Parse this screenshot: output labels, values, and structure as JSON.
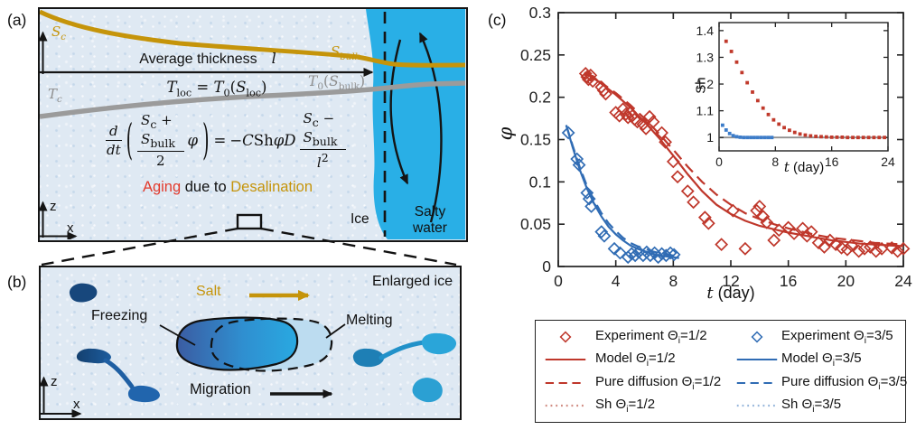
{
  "colors": {
    "red": "#bf372b",
    "blue": "#306cb4",
    "sh_red": "#c0392b",
    "sh_blue": "#3c7cc9",
    "legend_sh_red": "#d08b81",
    "legend_sh_blue": "#96b6db",
    "gold": "#c5940a",
    "gray_curve": "#9b9b9b",
    "water": "#29afe6",
    "aging_red": "#e23a2c",
    "ice_bg": "#dfe9f3",
    "axis": "#222222"
  },
  "panel_a": {
    "label": "(a)",
    "sc": {
      "b": "S",
      "s": "c"
    },
    "sbulk": {
      "b": "S",
      "s": "bulk"
    },
    "tc": {
      "b": "T",
      "s": "c"
    },
    "t0sbulk": {
      "t": "T",
      "ts": "0",
      "o": "(",
      "s": "S",
      "ss": "bulk",
      "c": ")"
    },
    "avg_text": "Average thickness",
    "avg_var": "l",
    "tloc": {
      "t": "T",
      "ts": "loc",
      "eq": "=",
      "t0": "T",
      "t0s": "0",
      "o": "(",
      "s": "S",
      "ss": "loc",
      "c": ")"
    },
    "ode": {
      "d": "d",
      "dt": "dt",
      "o": "(",
      "s1": "S",
      "s1s": "c",
      "plus": "+",
      "s2": "S",
      "s2s": "bulk",
      "den": "2",
      "phi": "φ",
      "c": ")",
      "eq": "=",
      "minus": "−",
      "cc": "C",
      "sh": "Sh",
      "phi2": "φ",
      "dd": "D",
      "n1": "S",
      "n1s": "c",
      "m2": "−",
      "n2": "S",
      "n2s": "bulk",
      "l": "l",
      "lsup": "2"
    },
    "aging": {
      "a": "Aging",
      "b": "due to",
      "c": "Desalination"
    },
    "ice": "Ice",
    "water1": "Salty",
    "water2": "water",
    "z": "z",
    "x": "x"
  },
  "panel_b": {
    "label": "(b)",
    "salt": "Salt",
    "enlarged": "Enlarged ice",
    "freezing": "Freezing",
    "melting": "Melting",
    "migration": "Migration",
    "z": "z",
    "x": "x"
  },
  "panel_c": {
    "label": "(c)",
    "ylabel": "φ",
    "xlabel_var": "t",
    "xlabel_rest": " (day)",
    "inset_ylabel": "Sh",
    "inset_xlabel_var": "t",
    "inset_xlabel_rest": " (day)"
  },
  "legend": {
    "items": [
      {
        "label": "Experiment",
        "theta": "Θ",
        "sub": "i",
        "val": "=1/2",
        "marker": "diamond",
        "color": "#bf372b"
      },
      {
        "label": "Experiment",
        "theta": "Θ",
        "sub": "i",
        "val": "=3/5",
        "marker": "diamond",
        "color": "#306cb4"
      },
      {
        "label": "Model",
        "theta": "Θ",
        "sub": "i",
        "val": "=1/2",
        "marker": "solid",
        "color": "#bf372b"
      },
      {
        "label": "Model",
        "theta": "Θ",
        "sub": "i",
        "val": "=3/5",
        "marker": "solid",
        "color": "#306cb4"
      },
      {
        "label": "Pure diffusion",
        "theta": "Θ",
        "sub": "i",
        "val": "=1/2",
        "marker": "dashed",
        "color": "#bf372b"
      },
      {
        "label": "Pure diffusion",
        "theta": "Θ",
        "sub": "i",
        "val": "=3/5",
        "marker": "dashed",
        "color": "#306cb4"
      },
      {
        "label": "Sh",
        "theta": "Θ",
        "sub": "i",
        "val": "=1/2",
        "marker": "dotted",
        "color": "#d08b81"
      },
      {
        "label": "Sh",
        "theta": "Θ",
        "sub": "i",
        "val": "=3/5",
        "marker": "dotted",
        "color": "#96b6db"
      }
    ]
  },
  "chart_data": [
    {
      "id": "main",
      "type": "scatter",
      "title": "",
      "xlabel": "t (day)",
      "ylabel": "φ",
      "xlim": [
        0,
        24
      ],
      "ylim": [
        0,
        0.3
      ],
      "xticks": [
        0,
        4,
        8,
        12,
        16,
        20,
        24
      ],
      "yticks": [
        0,
        0.05,
        0.1,
        0.15,
        0.2,
        0.25,
        0.3
      ],
      "grid": false,
      "legend_position": "below",
      "series": [
        {
          "name": "Model Θi=1/2",
          "type": "line",
          "style": "solid",
          "color": "#bf372b",
          "points": [
            [
              1.8,
              0.229
            ],
            [
              2.5,
              0.222
            ],
            [
              3,
              0.216
            ],
            [
              4,
              0.203
            ],
            [
              5,
              0.188
            ],
            [
              6,
              0.171
            ],
            [
              7,
              0.152
            ],
            [
              8,
              0.131
            ],
            [
              9,
              0.109
            ],
            [
              10,
              0.089
            ],
            [
              11,
              0.073
            ],
            [
              12,
              0.062
            ],
            [
              13,
              0.054
            ],
            [
              14,
              0.048
            ],
            [
              15,
              0.044
            ],
            [
              16,
              0.04
            ],
            [
              17,
              0.037
            ],
            [
              18,
              0.034
            ],
            [
              19,
              0.031
            ],
            [
              20,
              0.029
            ],
            [
              21,
              0.027
            ],
            [
              22,
              0.026
            ],
            [
              23,
              0.025
            ],
            [
              24,
              0.024
            ]
          ]
        },
        {
          "name": "Pure diffusion Θi=1/2",
          "type": "line",
          "style": "dashed",
          "color": "#bf372b",
          "points": [
            [
              1.8,
              0.229
            ],
            [
              2.5,
              0.223
            ],
            [
              3,
              0.217
            ],
            [
              4,
              0.205
            ],
            [
              5,
              0.191
            ],
            [
              6,
              0.175
            ],
            [
              7,
              0.157
            ],
            [
              8,
              0.138
            ],
            [
              9,
              0.118
            ],
            [
              10,
              0.1
            ],
            [
              11,
              0.085
            ],
            [
              12,
              0.073
            ],
            [
              13,
              0.063
            ],
            [
              14,
              0.056
            ],
            [
              15,
              0.05
            ],
            [
              16,
              0.045
            ],
            [
              17,
              0.041
            ],
            [
              18,
              0.037
            ],
            [
              19,
              0.034
            ],
            [
              20,
              0.032
            ],
            [
              21,
              0.03
            ],
            [
              22,
              0.028
            ],
            [
              23,
              0.027
            ],
            [
              24,
              0.026
            ]
          ]
        },
        {
          "name": "Model Θi=3/5",
          "type": "line",
          "style": "solid",
          "color": "#306cb4",
          "points": [
            [
              0.55,
              0.167
            ],
            [
              1,
              0.141
            ],
            [
              1.5,
              0.114
            ],
            [
              2,
              0.092
            ],
            [
              2.5,
              0.074
            ],
            [
              3,
              0.059
            ],
            [
              3.5,
              0.047
            ],
            [
              4,
              0.038
            ],
            [
              4.5,
              0.031
            ],
            [
              5,
              0.025
            ],
            [
              5.5,
              0.021
            ],
            [
              6,
              0.018
            ],
            [
              6.5,
              0.015
            ],
            [
              7,
              0.013
            ],
            [
              7.5,
              0.012
            ],
            [
              8,
              0.011
            ],
            [
              8.4,
              0.01
            ]
          ]
        },
        {
          "name": "Pure diffusion Θi=3/5",
          "type": "line",
          "style": "dashed",
          "color": "#306cb4",
          "points": [
            [
              0.55,
              0.167
            ],
            [
              1,
              0.143
            ],
            [
              1.5,
              0.117
            ],
            [
              2,
              0.095
            ],
            [
              2.5,
              0.078
            ],
            [
              3,
              0.063
            ],
            [
              3.5,
              0.051
            ],
            [
              4,
              0.042
            ],
            [
              4.5,
              0.034
            ],
            [
              5,
              0.028
            ],
            [
              5.5,
              0.024
            ],
            [
              6,
              0.021
            ],
            [
              6.5,
              0.018
            ],
            [
              7,
              0.016
            ],
            [
              7.5,
              0.014
            ],
            [
              8,
              0.013
            ],
            [
              8.4,
              0.012
            ]
          ]
        },
        {
          "name": "Experiment Θi=1/2",
          "type": "scatter",
          "marker": "diamond",
          "color": "#bf372b",
          "points": [
            [
              1.9,
              0.228
            ],
            [
              2,
              0.224
            ],
            [
              2.1,
              0.221
            ],
            [
              2.25,
              0.226
            ],
            [
              2.4,
              0.219
            ],
            [
              3,
              0.212
            ],
            [
              3.15,
              0.208
            ],
            [
              3.3,
              0.204
            ],
            [
              4,
              0.182
            ],
            [
              4.25,
              0.178
            ],
            [
              4.5,
              0.186
            ],
            [
              4.7,
              0.18
            ],
            [
              4.85,
              0.176
            ],
            [
              5,
              0.182
            ],
            [
              5.15,
              0.178
            ],
            [
              5.3,
              0.174
            ],
            [
              5.5,
              0.171
            ],
            [
              5.9,
              0.168
            ],
            [
              6.1,
              0.163
            ],
            [
              6.35,
              0.177
            ],
            [
              6.6,
              0.171
            ],
            [
              7.2,
              0.158
            ],
            [
              7.45,
              0.147
            ],
            [
              8,
              0.124
            ],
            [
              8.3,
              0.106
            ],
            [
              9,
              0.089
            ],
            [
              9.4,
              0.076
            ],
            [
              10.2,
              0.058
            ],
            [
              10.45,
              0.051
            ],
            [
              11.35,
              0.026
            ],
            [
              12.15,
              0.066
            ],
            [
              13,
              0.021
            ],
            [
              13.8,
              0.066
            ],
            [
              14,
              0.071
            ],
            [
              14.25,
              0.059
            ],
            [
              14.5,
              0.052
            ],
            [
              15,
              0.031
            ],
            [
              15.35,
              0.043
            ],
            [
              16,
              0.046
            ],
            [
              16.4,
              0.039
            ],
            [
              17,
              0.045
            ],
            [
              17.3,
              0.036
            ],
            [
              17.6,
              0.041
            ],
            [
              18.1,
              0.028
            ],
            [
              18.5,
              0.023
            ],
            [
              18.9,
              0.031
            ],
            [
              19.3,
              0.026
            ],
            [
              19.7,
              0.022
            ],
            [
              20.1,
              0.02
            ],
            [
              20.4,
              0.025
            ],
            [
              20.9,
              0.018
            ],
            [
              21.3,
              0.021
            ],
            [
              21.7,
              0.023
            ],
            [
              22.1,
              0.018
            ],
            [
              22.5,
              0.021
            ],
            [
              23.2,
              0.022
            ],
            [
              23.6,
              0.018
            ],
            [
              24,
              0.021
            ]
          ]
        },
        {
          "name": "Experiment Θi=3/5",
          "type": "scatter",
          "marker": "diamond",
          "color": "#306cb4",
          "points": [
            [
              0.7,
              0.158
            ],
            [
              1.3,
              0.127
            ],
            [
              1.45,
              0.12
            ],
            [
              2,
              0.087
            ],
            [
              2.15,
              0.08
            ],
            [
              2.3,
              0.071
            ],
            [
              3,
              0.041
            ],
            [
              3.2,
              0.036
            ],
            [
              3.9,
              0.021
            ],
            [
              4.3,
              0.016
            ],
            [
              4.85,
              0.011
            ],
            [
              5.1,
              0.015
            ],
            [
              5.35,
              0.013
            ],
            [
              5.6,
              0.017
            ],
            [
              5.9,
              0.013
            ],
            [
              6.15,
              0.017
            ],
            [
              6.4,
              0.013
            ],
            [
              6.7,
              0.016
            ],
            [
              6.95,
              0.011
            ],
            [
              7.2,
              0.015
            ],
            [
              7.5,
              0.013
            ],
            [
              7.8,
              0.016
            ],
            [
              8.05,
              0.014
            ]
          ]
        }
      ]
    },
    {
      "id": "inset",
      "type": "line",
      "title": "",
      "xlabel": "t (day)",
      "ylabel": "Sh",
      "xlim": [
        0,
        24
      ],
      "ylim": [
        0.95,
        1.43
      ],
      "xticks": [
        0,
        8,
        16,
        24
      ],
      "yticks": [
        1,
        1.1,
        1.2,
        1.3,
        1.4
      ],
      "grid": false,
      "refline_y": 1,
      "series": [
        {
          "name": "Sh Θi=1/2",
          "type": "dots",
          "color": "#c0392b",
          "points": [
            [
              1,
              1.36
            ],
            [
              1.75,
              1.322
            ],
            [
              2.5,
              1.282
            ],
            [
              3.25,
              1.243
            ],
            [
              4,
              1.205
            ],
            [
              4.75,
              1.17
            ],
            [
              5.5,
              1.138
            ],
            [
              6.25,
              1.11
            ],
            [
              7,
              1.086
            ],
            [
              7.75,
              1.066
            ],
            [
              8.5,
              1.05
            ],
            [
              9.25,
              1.037
            ],
            [
              10,
              1.027
            ],
            [
              10.75,
              1.019
            ],
            [
              11.5,
              1.013
            ],
            [
              12.25,
              1.009
            ],
            [
              13,
              1.006
            ],
            [
              13.75,
              1.004
            ],
            [
              14.5,
              1.003
            ],
            [
              15.25,
              1.002
            ],
            [
              16,
              1.001
            ],
            [
              16.75,
              1.001
            ],
            [
              17.5,
              1.001
            ],
            [
              18.25,
              1
            ],
            [
              19,
              1
            ],
            [
              19.75,
              1
            ],
            [
              20.5,
              1
            ],
            [
              21.25,
              1
            ],
            [
              22,
              1
            ],
            [
              22.75,
              1
            ],
            [
              23.5,
              1
            ]
          ]
        },
        {
          "name": "Sh Θi=3/5",
          "type": "dots",
          "color": "#3c7cc9",
          "points": [
            [
              0.5,
              1.046
            ],
            [
              1,
              1.028
            ],
            [
              1.5,
              1.015
            ],
            [
              2,
              1.007
            ],
            [
              2.5,
              1.003
            ],
            [
              3,
              1.001
            ],
            [
              3.5,
              1
            ],
            [
              4,
              1
            ],
            [
              4.5,
              1
            ],
            [
              5,
              1
            ],
            [
              5.5,
              1
            ],
            [
              6,
              1
            ],
            [
              6.5,
              1
            ],
            [
              7,
              1
            ],
            [
              7.5,
              1
            ]
          ]
        }
      ]
    }
  ]
}
